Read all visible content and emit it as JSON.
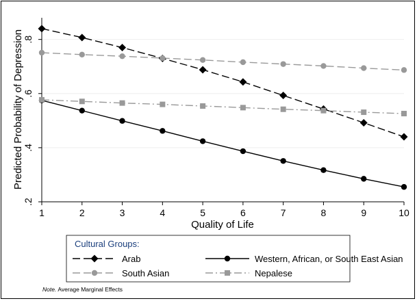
{
  "chart_data": {
    "type": "line",
    "xlabel": "Quality of Life",
    "ylabel": "Predicted Probability of Depression",
    "xlim": [
      1,
      10
    ],
    "ylim": [
      0.2,
      0.88
    ],
    "x": [
      1,
      2,
      3,
      4,
      5,
      6,
      7,
      8,
      9,
      10
    ],
    "x_ticks": [
      1,
      2,
      3,
      4,
      5,
      6,
      7,
      8,
      9,
      10
    ],
    "x_tick_labels": [
      "1",
      "2",
      "3",
      "4",
      "5",
      "6",
      "7",
      "8",
      "9",
      "10"
    ],
    "y_ticks": [
      0.2,
      0.4,
      0.6,
      0.8
    ],
    "y_tick_labels": [
      ".2",
      ".4",
      ".6",
      ".8"
    ],
    "grid": true,
    "legend_title": "Cultural Groups:",
    "legend_position": "bottom",
    "series": [
      {
        "name": "Arab",
        "values": [
          0.84,
          0.807,
          0.77,
          0.73,
          0.688,
          0.643,
          0.593,
          0.543,
          0.492,
          0.44
        ],
        "color": "#000000",
        "marker": "diamond",
        "line_style": "dashed"
      },
      {
        "name": "Western, African, or South East Asian",
        "values": [
          0.575,
          0.537,
          0.499,
          0.462,
          0.424,
          0.387,
          0.351,
          0.317,
          0.285,
          0.255
        ],
        "color": "#000000",
        "marker": "circle",
        "line_style": "solid"
      },
      {
        "name": "South Asian",
        "values": [
          0.751,
          0.744,
          0.738,
          0.731,
          0.724,
          0.716,
          0.709,
          0.702,
          0.694,
          0.687
        ],
        "color": "#999999",
        "marker": "circle",
        "line_style": "dashed"
      },
      {
        "name": "Nepalese",
        "values": [
          0.577,
          0.571,
          0.565,
          0.56,
          0.554,
          0.548,
          0.542,
          0.537,
          0.531,
          0.526
        ],
        "color": "#999999",
        "marker": "square",
        "line_style": "dashdot"
      }
    ],
    "note_prefix": "Note.",
    "note": "Average Marginal Effects"
  }
}
